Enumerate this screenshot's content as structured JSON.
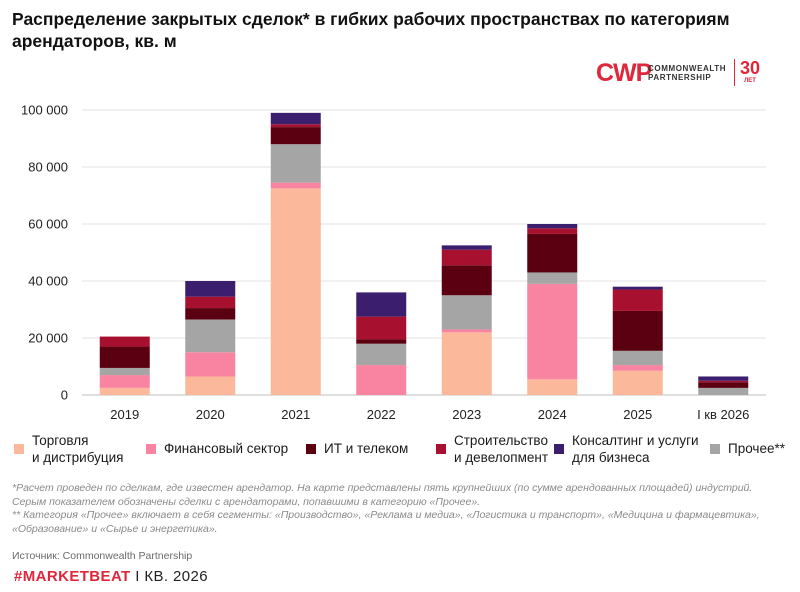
{
  "title": "Распределение закрытых сделок* в гибких рабочих пространствах по категориям арендаторов, кв. м",
  "logo": {
    "mark": "CWP",
    "line1": "COMMONWEALTH",
    "line2": "PARTNERSHIP",
    "years": "30",
    "years_sub": "ЛЕТ",
    "color": "#e0263a"
  },
  "chart_data": {
    "type": "bar",
    "stacked": true,
    "title": "Распределение закрытых сделок* в гибких рабочих пространствах по категориям арендаторов, кв. м",
    "xlabel": "",
    "ylabel": "",
    "ylim": [
      0,
      100000
    ],
    "yticks": [
      0,
      20000,
      40000,
      60000,
      80000,
      100000
    ],
    "ytick_labels": [
      "0",
      "20 000",
      "40 000",
      "60 000",
      "80 000",
      "100 000"
    ],
    "grid": true,
    "legend_position": "bottom",
    "categories": [
      "2019",
      "2020",
      "2021",
      "2022",
      "2023",
      "2024",
      "2025",
      "I кв 2026"
    ],
    "series": [
      {
        "name": "Торговля\nи дистрибуция",
        "color": "#fbb89a",
        "values": [
          2500,
          6500,
          72500,
          0,
          22000,
          5500,
          8500,
          0
        ]
      },
      {
        "name": "Финансовый сектор",
        "color": "#f984a1",
        "values": [
          4500,
          8500,
          2000,
          10500,
          1000,
          33500,
          2000,
          0
        ]
      },
      {
        "name": "Прочее**",
        "color": "#a6a5a6",
        "values": [
          2500,
          11500,
          13500,
          7500,
          12000,
          4000,
          5000,
          2500
        ]
      },
      {
        "name": "ИТ и телеком",
        "color": "#5a0010",
        "values": [
          7500,
          4000,
          6000,
          1500,
          10500,
          13500,
          14000,
          2000
        ]
      },
      {
        "name": "Строительство\nи девелопмент",
        "color": "#a8102f",
        "values": [
          3500,
          4000,
          1000,
          8000,
          5500,
          2000,
          7500,
          500
        ]
      },
      {
        "name": "Консалтинг и услуги\nдля бизнеса",
        "color": "#3b1f6e",
        "values": [
          0,
          5500,
          4000,
          8500,
          1500,
          1500,
          1000,
          1500
        ]
      }
    ]
  },
  "legend": [
    {
      "label": "Торговля\nи дистрибуция",
      "color": "#fbb89a"
    },
    {
      "label": "Финансовый сектор",
      "color": "#f984a1"
    },
    {
      "label": "ИТ и телеком",
      "color": "#5a0010"
    },
    {
      "label": "Строительство\nи девелопмент",
      "color": "#a8102f"
    },
    {
      "label": "Консалтинг и услуги\nдля бизнеса",
      "color": "#3b1f6e"
    },
    {
      "label": "Прочее**",
      "color": "#a6a5a6"
    }
  ],
  "footnotes": [
    "*Расчет проведен по сделкам, где известен арендатор. На карте представлены пять крупнейших (по сумме арендованных площадей) индустрий.",
    "Серым показателем обозначены сделки с арендаторами, попавшими в категорию «Прочее».",
    "** Категория «Прочее» включает в себя сегменты: «Производство», «Реклама и медиа», «Логистика и транспорт», «Медицина и фармацевтика»,",
    "«Образование» и «Сырье и энергетика»."
  ],
  "source": "Источник: Commonwealth Partnership",
  "brand": {
    "hash": "#MARKETBEAT",
    "rest": " I КВ. 2026"
  }
}
